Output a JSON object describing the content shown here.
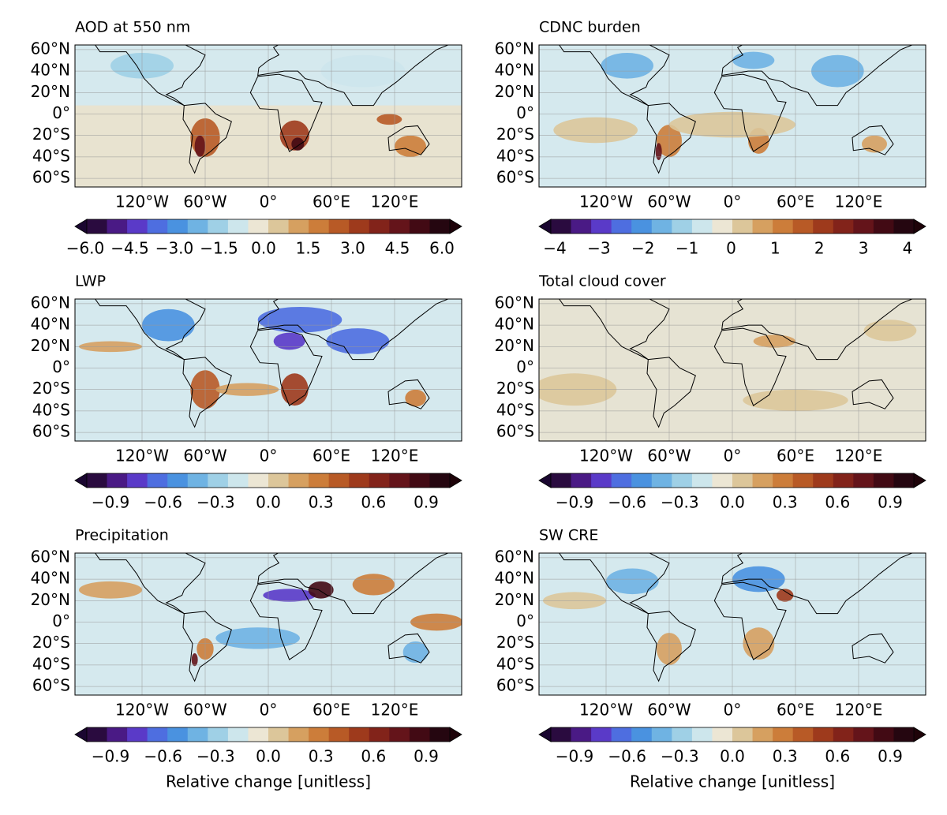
{
  "panels": [
    {
      "title": "AOD at 550 nm",
      "lat_labels": [
        "60°N",
        "40°N",
        "20°N",
        "0°",
        "20°S",
        "40°S",
        "60°S"
      ],
      "lon_labels": [
        "120°W",
        "60°W",
        "0°",
        "60°E",
        "120°E"
      ],
      "colorbar": {
        "ticks": [
          "−6.0",
          "−4.5",
          "−3.0",
          "−1.5",
          "0.0",
          "1.5",
          "3.0",
          "4.5",
          "6.0"
        ]
      }
    },
    {
      "title": "CDNC burden",
      "lat_labels": [
        "60°N",
        "40°N",
        "20°N",
        "0°",
        "20°S",
        "40°S",
        "60°S"
      ],
      "lon_labels": [
        "120°W",
        "60°W",
        "0°",
        "60°E",
        "120°E"
      ],
      "colorbar": {
        "ticks": [
          "−4",
          "−3",
          "−2",
          "−1",
          "0",
          "1",
          "2",
          "3",
          "4"
        ]
      }
    },
    {
      "title": "LWP",
      "lat_labels": [
        "60°N",
        "40°N",
        "20°N",
        "0°",
        "20°S",
        "40°S",
        "60°S"
      ],
      "lon_labels": [
        "120°W",
        "60°W",
        "0°",
        "60°E",
        "120°E"
      ],
      "colorbar": {
        "ticks": [
          "−0.9",
          "−0.6",
          "−0.3",
          "0.0",
          "0.3",
          "0.6",
          "0.9"
        ]
      }
    },
    {
      "title": "Total cloud cover",
      "lat_labels": [
        "60°N",
        "40°N",
        "20°N",
        "0°",
        "20°S",
        "40°S",
        "60°S"
      ],
      "lon_labels": [
        "120°W",
        "60°W",
        "0°",
        "60°E",
        "120°E"
      ],
      "colorbar": {
        "ticks": [
          "−0.9",
          "−0.6",
          "−0.3",
          "0.0",
          "0.3",
          "0.6",
          "0.9"
        ]
      }
    },
    {
      "title": "Precipitation",
      "lat_labels": [
        "60°N",
        "40°N",
        "20°N",
        "0°",
        "20°S",
        "40°S",
        "60°S"
      ],
      "lon_labels": [
        "120°W",
        "60°W",
        "0°",
        "60°E",
        "120°E"
      ],
      "colorbar": {
        "ticks": [
          "−0.9",
          "−0.6",
          "−0.3",
          "0.0",
          "0.3",
          "0.6",
          "0.9"
        ],
        "label": "Relative change [unitless]"
      }
    },
    {
      "title": "SW CRE",
      "lat_labels": [
        "60°N",
        "40°N",
        "20°N",
        "0°",
        "20°S",
        "40°S",
        "60°S"
      ],
      "lon_labels": [
        "120°W",
        "60°W",
        "0°",
        "60°E",
        "120°E"
      ],
      "colorbar": {
        "ticks": [
          "−0.9",
          "−0.6",
          "−0.3",
          "0.0",
          "0.3",
          "0.6",
          "0.9"
        ],
        "label": "Relative change [unitless]"
      }
    }
  ]
}
